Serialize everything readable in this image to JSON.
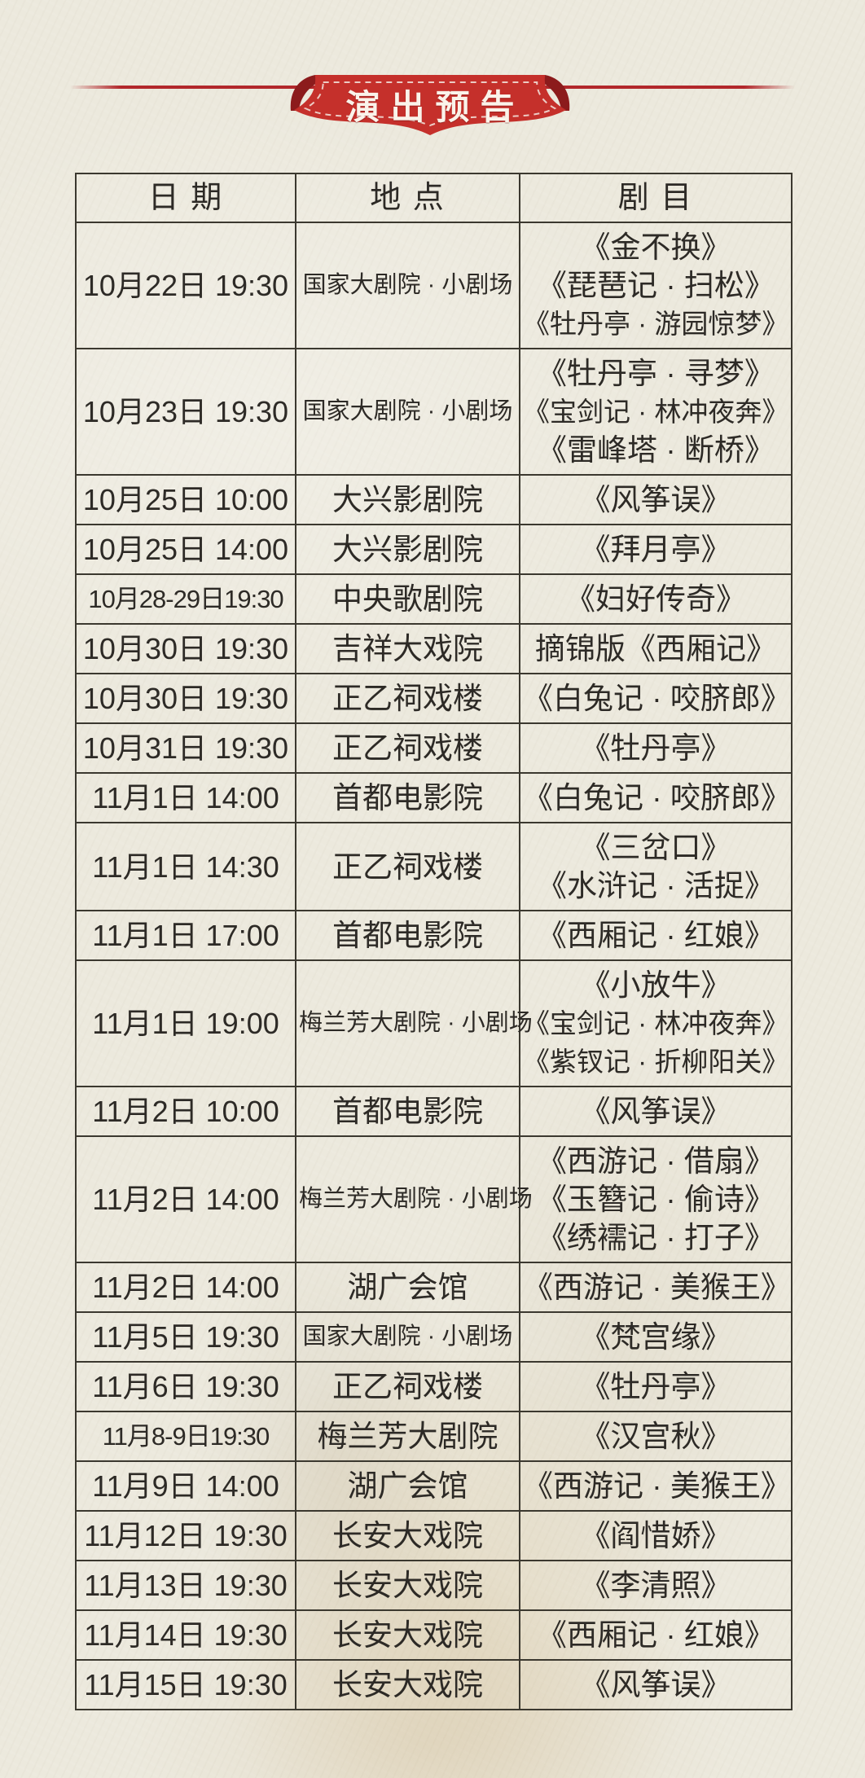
{
  "banner": {
    "title": "演出预告"
  },
  "table": {
    "headers": [
      "日 期",
      "地 点",
      "剧 目"
    ],
    "rows": [
      {
        "date": "10月22日 19:30",
        "venue": "国家大剧院 · 小剧场",
        "plays": [
          "《金不换》",
          "《琵琶记 · 扫松》",
          "《牡丹亭 · 游园惊梦》"
        ]
      },
      {
        "date": "10月23日 19:30",
        "venue": "国家大剧院 · 小剧场",
        "plays": [
          "《牡丹亭 · 寻梦》",
          "《宝剑记 · 林冲夜奔》",
          "《雷峰塔 · 断桥》"
        ]
      },
      {
        "date": "10月25日 10:00",
        "venue": "大兴影剧院",
        "plays": [
          "《风筝误》"
        ]
      },
      {
        "date": "10月25日 14:00",
        "venue": "大兴影剧院",
        "plays": [
          "《拜月亭》"
        ]
      },
      {
        "date": "10月28-29日19:30",
        "venue": "中央歌剧院",
        "plays": [
          "《妇好传奇》"
        ]
      },
      {
        "date": "10月30日 19:30",
        "venue": "吉祥大戏院",
        "plays": [
          "摘锦版《西厢记》"
        ]
      },
      {
        "date": "10月30日 19:30",
        "venue": "正乙祠戏楼",
        "plays": [
          "《白兔记 · 咬脐郎》"
        ]
      },
      {
        "date": "10月31日 19:30",
        "venue": "正乙祠戏楼",
        "plays": [
          "《牡丹亭》"
        ]
      },
      {
        "date": "11月1日 14:00",
        "venue": "首都电影院",
        "plays": [
          "《白兔记 · 咬脐郎》"
        ]
      },
      {
        "date": "11月1日 14:30",
        "venue": "正乙祠戏楼",
        "plays": [
          "《三岔口》",
          "《水浒记 · 活捉》"
        ]
      },
      {
        "date": "11月1日 17:00",
        "venue": "首都电影院",
        "plays": [
          "《西厢记 · 红娘》"
        ]
      },
      {
        "date": "11月1日 19:00",
        "venue": "梅兰芳大剧院 · 小剧场",
        "plays": [
          "《小放牛》",
          "《宝剑记 · 林冲夜奔》",
          "《紫钗记 · 折柳阳关》"
        ]
      },
      {
        "date": "11月2日 10:00",
        "venue": "首都电影院",
        "plays": [
          "《风筝误》"
        ]
      },
      {
        "date": "11月2日 14:00",
        "venue": "梅兰芳大剧院 · 小剧场",
        "plays": [
          "《西游记 · 借扇》",
          "《玉簪记 · 偷诗》",
          "《绣襦记 · 打子》"
        ]
      },
      {
        "date": "11月2日 14:00",
        "venue": "湖广会馆",
        "plays": [
          "《西游记 · 美猴王》"
        ]
      },
      {
        "date": "11月5日 19:30",
        "venue": "国家大剧院 · 小剧场",
        "plays": [
          "《梵宫缘》"
        ]
      },
      {
        "date": "11月6日 19:30",
        "venue": "正乙祠戏楼",
        "plays": [
          "《牡丹亭》"
        ]
      },
      {
        "date": "11月8-9日19:30",
        "venue": "梅兰芳大剧院",
        "plays": [
          "《汉宫秋》"
        ]
      },
      {
        "date": "11月9日 14:00",
        "venue": "湖广会馆",
        "plays": [
          "《西游记 · 美猴王》"
        ]
      },
      {
        "date": "11月12日 19:30",
        "venue": "长安大戏院",
        "plays": [
          "《阎惜娇》"
        ]
      },
      {
        "date": "11月13日 19:30",
        "venue": "长安大戏院",
        "plays": [
          "《李清照》"
        ]
      },
      {
        "date": "11月14日 19:30",
        "venue": "长安大戏院",
        "plays": [
          "《西厢记 · 红娘》"
        ]
      },
      {
        "date": "11月15日 19:30",
        "venue": "长安大戏院",
        "plays": [
          "《风筝误》"
        ]
      }
    ]
  },
  "colors": {
    "ribbon_red": "#c5302b",
    "ribbon_fold": "#8c1b1c",
    "stitch_white": "#f3e6df",
    "rule_red": "#b2272b",
    "paper": "#ece9dd",
    "grid_line": "#3b382f",
    "text": "#2d2a26"
  }
}
